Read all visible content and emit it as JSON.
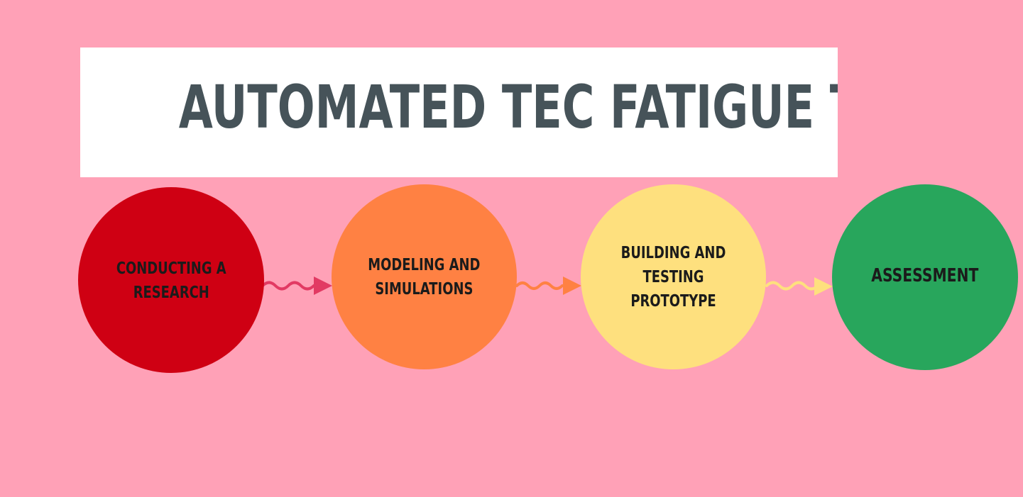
{
  "title": "AUTOMATED TEC FATIGUE TESTING",
  "colors": {
    "background": "#ffa1b7",
    "title_box": "#ffffff",
    "title_text": "#465359",
    "label_text": "#1b1b1b"
  },
  "steps": [
    {
      "label": "CONDUCTING A\nRESEARCH",
      "color": "#cf0013"
    },
    {
      "label": "MODELING AND\nSIMULATIONS",
      "color": "#ff8143"
    },
    {
      "label": "BUILDING AND\nTESTING PROTOTYPE",
      "color": "#fee07e"
    },
    {
      "label": "ASSESSMENT",
      "color": "#28a65c"
    }
  ],
  "arrows": [
    {
      "from": "CONDUCTING A\nRESEARCH",
      "to": "MODELING AND\nSIMULATIONS",
      "color": "#e23a63"
    },
    {
      "from": "MODELING AND\nSIMULATIONS",
      "to": "BUILDING AND\nTESTING PROTOTYPE",
      "color": "#ff8143"
    },
    {
      "from": "BUILDING AND\nTESTING PROTOTYPE",
      "to": "ASSESSMENT",
      "color": "#fee07e"
    }
  ]
}
